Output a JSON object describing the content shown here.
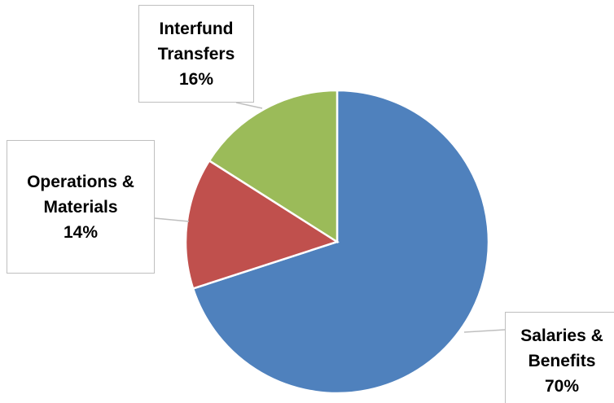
{
  "chart_data": {
    "type": "pie",
    "categories": [
      "Salaries & Benefits",
      "Operations & Materials",
      "Interfund Transfers"
    ],
    "values": [
      70,
      14,
      16
    ],
    "value_labels": [
      "70%",
      "14%",
      "16%"
    ],
    "colors": [
      "#4f81bd",
      "#c0504d",
      "#9bbb59"
    ]
  }
}
